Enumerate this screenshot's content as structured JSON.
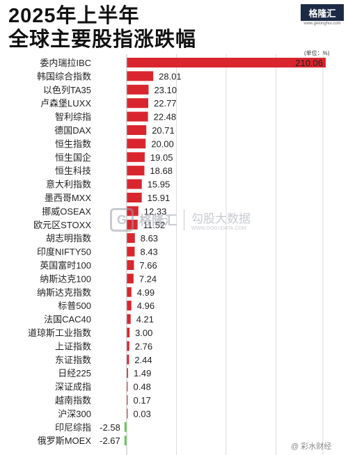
{
  "title_line1": "2025年上半年",
  "title_line2": "全球主要股指涨跌幅",
  "logo_text": "格隆汇",
  "logo_url": "www.gelonghui.com",
  "watermark": {
    "brand": "格隆汇",
    "name": "勾股大数据",
    "url": "WWW.GOGUDATA.COM"
  },
  "credit": "@ 彩水财经",
  "chart_data": {
    "type": "bar",
    "orientation": "horizontal",
    "unit": "(单位：%)",
    "categories": [
      "委内瑞拉IBC",
      "韩国综合指数",
      "以色列TA35",
      "卢森堡LUXX",
      "智利综指",
      "德国DAX",
      "恒生指数",
      "恒生国企",
      "恒生科技",
      "意大利指数",
      "墨西哥MXX",
      "挪威OSEAX",
      "欧元区STOXX",
      "胡志明指数",
      "印度NIFTY50",
      "英国富时100",
      "纳斯达克100",
      "纳斯达克指数",
      "标普500",
      "法国CAC40",
      "道琼斯工业指数",
      "上证指数",
      "东证指数",
      "日经225",
      "深证成指",
      "越南指数",
      "沪深300",
      "印尼综指",
      "俄罗斯MOEX"
    ],
    "values": [
      210.06,
      28.01,
      23.1,
      22.77,
      22.48,
      20.71,
      20.0,
      19.05,
      18.68,
      15.95,
      15.91,
      12.33,
      11.52,
      8.63,
      8.43,
      7.66,
      7.24,
      4.99,
      4.96,
      4.21,
      3.0,
      2.76,
      2.44,
      1.49,
      0.48,
      0.17,
      0.03,
      -2.58,
      -2.67
    ],
    "labels": [
      "210.06",
      "28.01",
      "23.10",
      "22.77",
      "22.48",
      "20.71",
      "20.00",
      "19.05",
      "18.68",
      "15.95",
      "15.91",
      "12.33",
      "11.52",
      "8.63",
      "8.43",
      "7.66",
      "7.24",
      "4.99",
      "4.96",
      "4.21",
      "3.00",
      "2.76",
      "2.44",
      "1.49",
      "0.48",
      "0.17",
      "0.03",
      "-2.58",
      "-2.67"
    ],
    "positive_color": "#d9262e",
    "negative_color": "#5ccf48",
    "grid": true
  }
}
